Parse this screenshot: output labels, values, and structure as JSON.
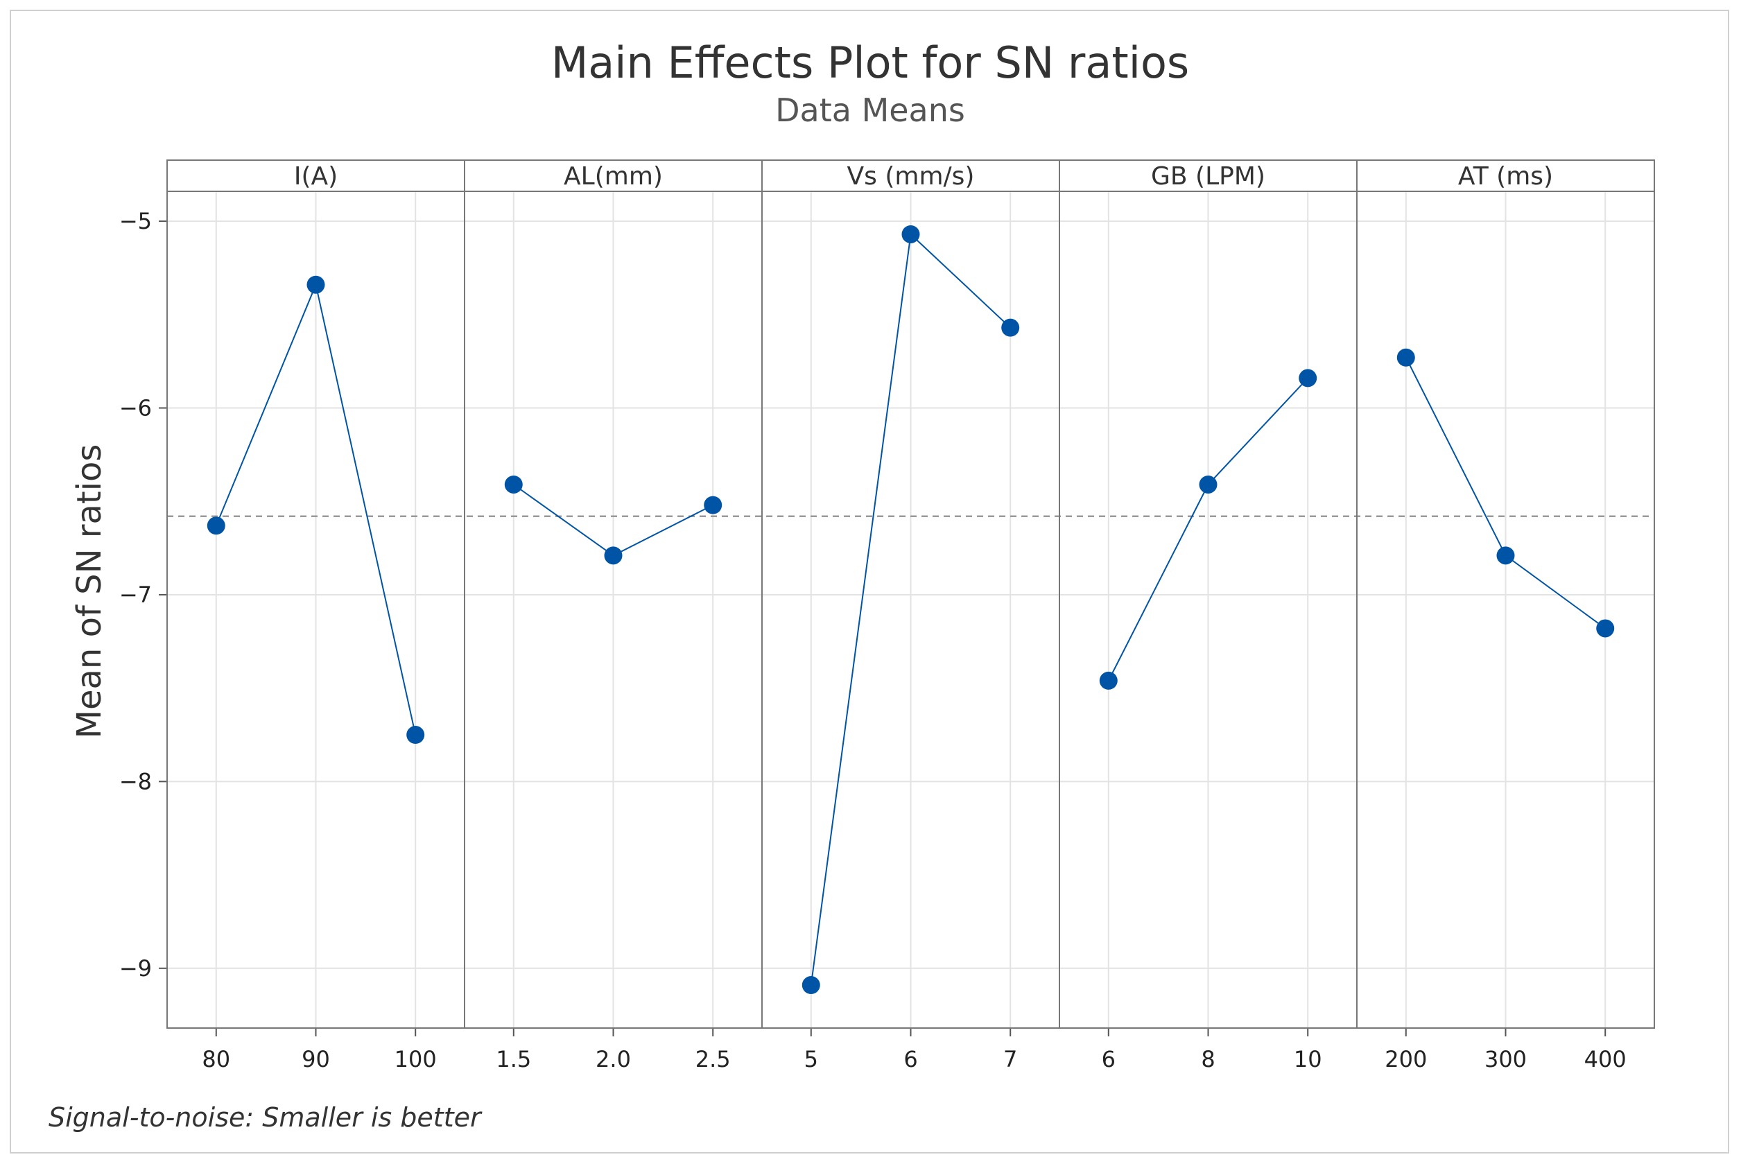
{
  "chart_data": {
    "type": "line",
    "title": "Main Effects Plot for SN ratios",
    "subtitle": "Data Means",
    "ylabel": "Mean of SN ratios",
    "ylim": [
      -9.32,
      -4.84
    ],
    "yticks": [
      -5,
      -6,
      -7,
      -8,
      -9
    ],
    "ytick_labels": [
      "−5",
      "−6",
      "−7",
      "−8",
      "−9"
    ],
    "overall_mean": -6.58,
    "footnote": "Signal-to-noise: Smaller is better",
    "series_color": "#0054a6",
    "panels": [
      {
        "name": "I(A)",
        "categories": [
          "80",
          "90",
          "100"
        ],
        "values": [
          -6.63,
          -5.34,
          -7.75
        ]
      },
      {
        "name": "AL(mm)",
        "categories": [
          "1.5",
          "2.0",
          "2.5"
        ],
        "values": [
          -6.41,
          -6.79,
          -6.52
        ]
      },
      {
        "name": "Vs (mm/s)",
        "categories": [
          "5",
          "6",
          "7"
        ],
        "values": [
          -9.09,
          -5.07,
          -5.57
        ]
      },
      {
        "name": "GB (LPM)",
        "categories": [
          "6",
          "8",
          "10"
        ],
        "values": [
          -7.46,
          -6.41,
          -5.84
        ]
      },
      {
        "name": "AT (ms)",
        "categories": [
          "200",
          "300",
          "400"
        ],
        "values": [
          -5.73,
          -6.79,
          -7.18
        ]
      }
    ]
  }
}
